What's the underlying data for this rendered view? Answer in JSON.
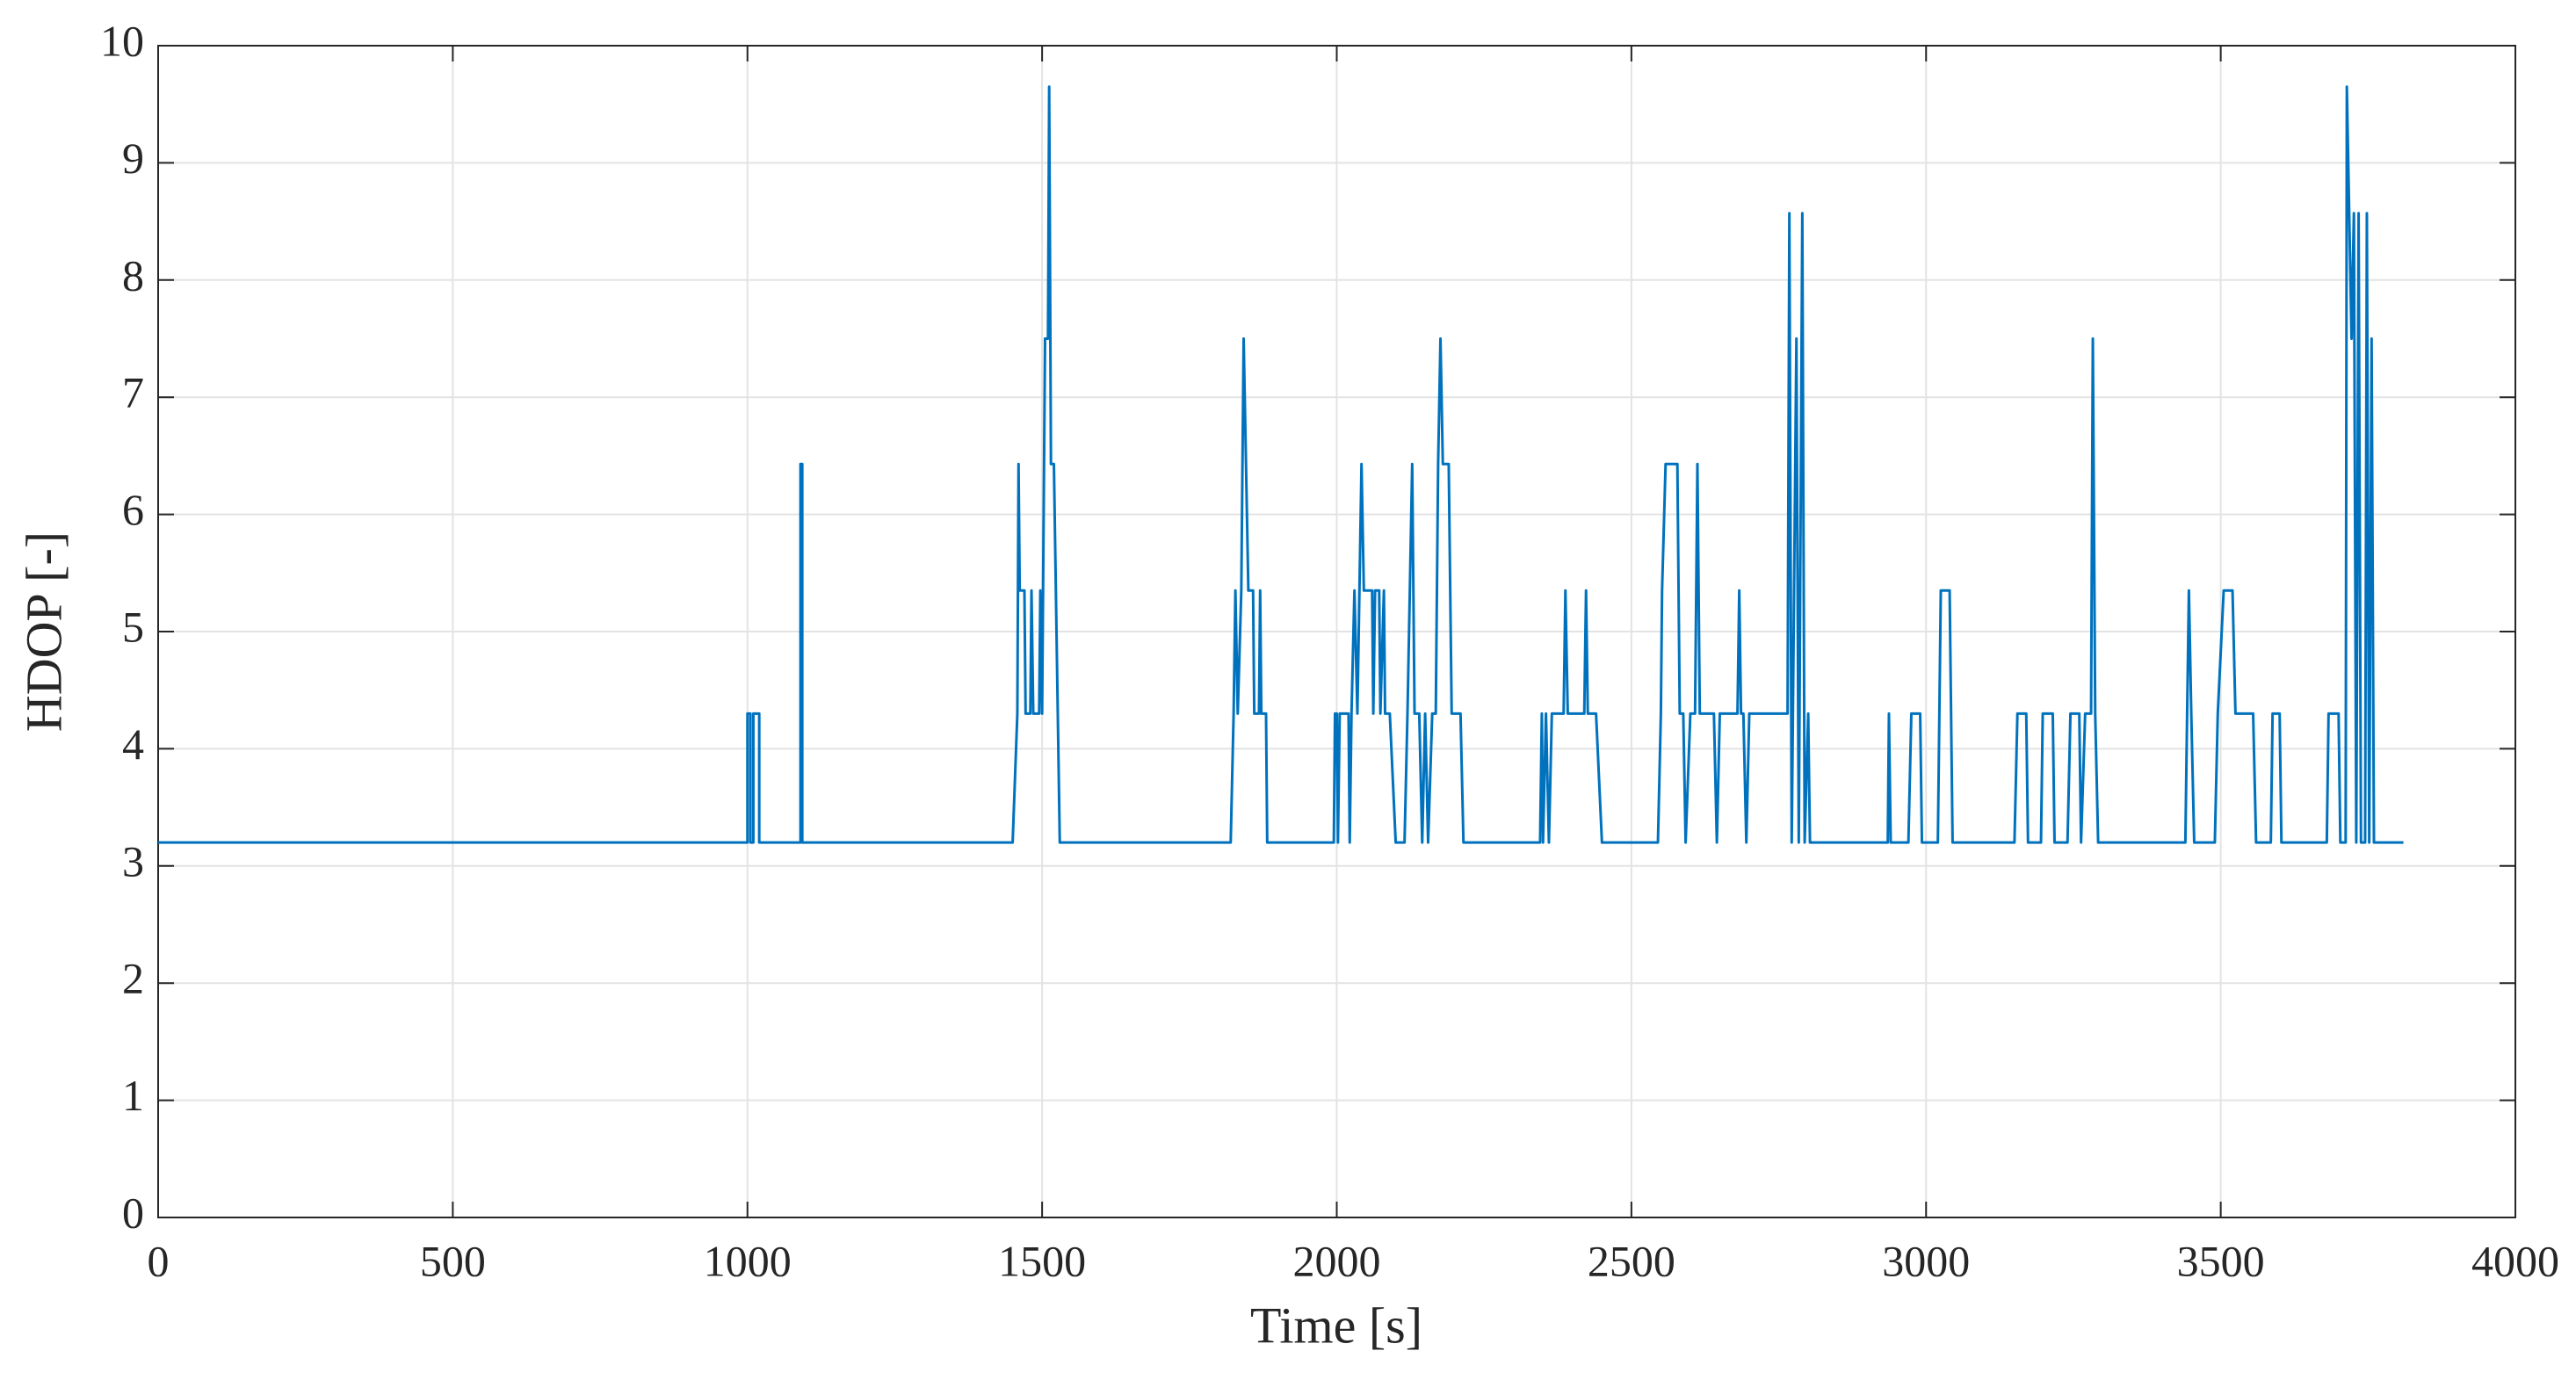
{
  "chart_data": {
    "type": "line",
    "xlabel": "Time [s]",
    "ylabel": "HDOP [-]",
    "color": "#0072bd",
    "grid": true,
    "xlim": [
      0,
      4000
    ],
    "xticks": [
      0,
      500,
      1000,
      1500,
      2000,
      2500,
      3000,
      3500,
      4000
    ],
    "ylim": [
      0,
      10
    ],
    "yticks": [
      0,
      1,
      2,
      3,
      4,
      5,
      6,
      7,
      8,
      9,
      10
    ],
    "x": [
      0,
      1000,
      1000,
      1005,
      1005,
      1010,
      1010,
      1020,
      1020,
      1090,
      1090,
      1093,
      1093,
      1450,
      1458,
      1460,
      1462,
      1470,
      1472,
      1480,
      1482,
      1485,
      1495,
      1497,
      1500,
      1505,
      1510,
      1512,
      1515,
      1520,
      1530,
      1820,
      1825,
      1828,
      1832,
      1838,
      1842,
      1846,
      1850,
      1858,
      1860,
      1868,
      1870,
      1872,
      1880,
      1882,
      1995,
      1997,
      2000,
      2002,
      2005,
      2020,
      2022,
      2025,
      2030,
      2035,
      2042,
      2046,
      2060,
      2062,
      2065,
      2072,
      2074,
      2080,
      2082,
      2090,
      2100,
      2115,
      2120,
      2124,
      2128,
      2132,
      2140,
      2145,
      2150,
      2155,
      2162,
      2168,
      2172,
      2176,
      2180,
      2190,
      2195,
      2210,
      2215,
      2345,
      2348,
      2350,
      2355,
      2360,
      2365,
      2385,
      2388,
      2392,
      2420,
      2423,
      2426,
      2440,
      2450,
      2545,
      2550,
      2552,
      2558,
      2578,
      2582,
      2588,
      2592,
      2600,
      2608,
      2612,
      2616,
      2640,
      2645,
      2650,
      2680,
      2683,
      2686,
      2690,
      2695,
      2700,
      2765,
      2768,
      2772,
      2780,
      2784,
      2790,
      2794,
      2800,
      2803,
      2935,
      2937,
      2940,
      2970,
      2975,
      2990,
      2993,
      3020,
      3025,
      3040,
      3045,
      3150,
      3155,
      3170,
      3173,
      3195,
      3198,
      3215,
      3218,
      3240,
      3245,
      3260,
      3263,
      3270,
      3280,
      3283,
      3287,
      3292,
      3440,
      3443,
      3446,
      3450,
      3455,
      3490,
      3495,
      3505,
      3520,
      3525,
      3555,
      3560,
      3585,
      3588,
      3600,
      3603,
      3680,
      3683,
      3700,
      3703,
      3712,
      3714,
      3718,
      3722,
      3726,
      3730,
      3734,
      3738,
      3745,
      3748,
      3752,
      3756,
      3760,
      3810
    ],
    "values": [
      3.2,
      3.2,
      4.3,
      4.3,
      3.2,
      3.2,
      4.3,
      4.3,
      3.2,
      3.2,
      6.43,
      6.43,
      3.2,
      3.2,
      4.3,
      6.43,
      5.35,
      5.35,
      4.3,
      4.3,
      5.35,
      4.3,
      4.3,
      5.35,
      4.3,
      7.5,
      7.5,
      9.65,
      6.43,
      6.43,
      3.2,
      3.2,
      4.3,
      5.35,
      4.3,
      5.35,
      7.5,
      6.43,
      5.35,
      5.35,
      4.3,
      4.3,
      5.35,
      4.3,
      4.3,
      3.2,
      3.2,
      4.3,
      4.3,
      3.2,
      4.3,
      4.3,
      3.2,
      4.3,
      5.35,
      4.3,
      6.43,
      5.35,
      5.35,
      4.3,
      5.35,
      5.35,
      4.3,
      5.35,
      4.3,
      4.3,
      3.2,
      3.2,
      4.3,
      5.35,
      6.43,
      4.3,
      4.3,
      3.2,
      4.3,
      3.2,
      4.3,
      4.3,
      6.43,
      7.5,
      6.43,
      6.43,
      4.3,
      4.3,
      3.2,
      3.2,
      4.3,
      3.2,
      4.3,
      3.2,
      4.3,
      4.3,
      5.35,
      4.3,
      4.3,
      5.35,
      4.3,
      4.3,
      3.2,
      3.2,
      4.3,
      5.35,
      6.43,
      6.43,
      4.3,
      4.3,
      3.2,
      4.3,
      4.3,
      6.43,
      4.3,
      4.3,
      3.2,
      4.3,
      4.3,
      5.35,
      4.3,
      4.3,
      3.2,
      4.3,
      4.3,
      8.57,
      3.2,
      7.5,
      3.2,
      8.57,
      3.2,
      4.3,
      3.2,
      3.2,
      4.3,
      3.2,
      3.2,
      4.3,
      4.3,
      3.2,
      3.2,
      5.35,
      5.35,
      3.2,
      3.2,
      4.3,
      4.3,
      3.2,
      3.2,
      4.3,
      4.3,
      3.2,
      3.2,
      4.3,
      4.3,
      3.2,
      4.3,
      4.3,
      7.5,
      4.3,
      3.2,
      3.2,
      4.3,
      5.35,
      4.3,
      3.2,
      3.2,
      4.3,
      5.35,
      5.35,
      4.3,
      4.3,
      3.2,
      3.2,
      4.3,
      4.3,
      3.2,
      3.2,
      4.3,
      4.3,
      3.2,
      3.2,
      9.65,
      8.57,
      7.5,
      8.57,
      3.2,
      8.57,
      3.2,
      3.2,
      8.57,
      3.2,
      7.5,
      3.2,
      3.2
    ]
  }
}
